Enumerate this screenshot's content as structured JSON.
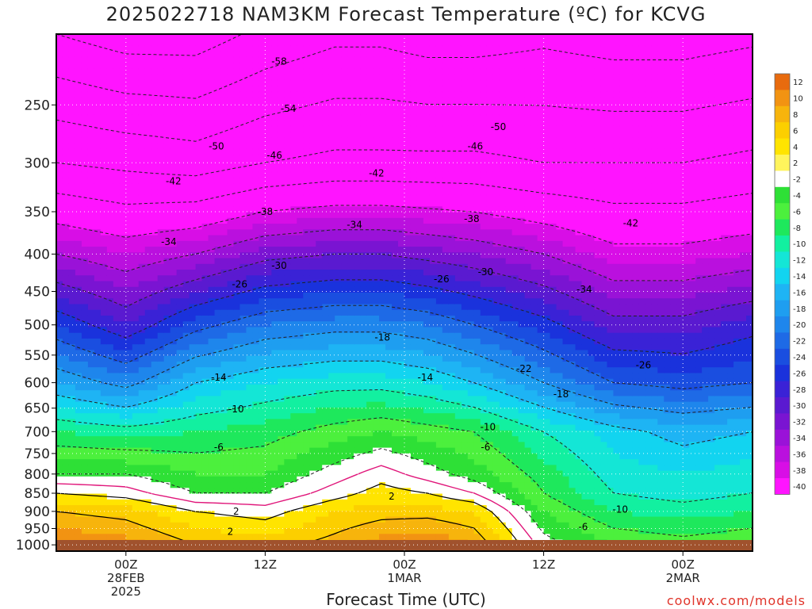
{
  "chart_data": {
    "type": "heatmap",
    "title": "2025022718 NAM3KM Forecast Temperature (ºC) for KCVG",
    "xlabel": "Forecast Time (UTC)",
    "ylabel": "",
    "y_scale": "log-pressure (hPa), inverted",
    "ylim": [
      200,
      1020
    ],
    "y_ticks": [
      250,
      300,
      350,
      400,
      450,
      500,
      550,
      600,
      650,
      700,
      750,
      800,
      850,
      900,
      950,
      1000
    ],
    "x_ticks": [
      {
        "hour": 6,
        "label": [
          "00Z",
          "28FEB",
          "2025"
        ]
      },
      {
        "hour": 18,
        "label": [
          "12Z"
        ]
      },
      {
        "hour": 30,
        "label": [
          "00Z",
          "1MAR"
        ]
      },
      {
        "hour": 42,
        "label": [
          "12Z"
        ]
      },
      {
        "hour": 54,
        "label": [
          "00Z",
          "2MAR"
        ]
      }
    ],
    "xlim_hours_from_init": [
      0,
      60
    ],
    "grid": true,
    "colorbar": {
      "labels": [
        "12",
        "10",
        "8",
        "6",
        "4",
        "2",
        "-2",
        "-4",
        "-6",
        "-8",
        "-10",
        "-12",
        "-14",
        "-16",
        "-18",
        "-20",
        "-22",
        "-24",
        "-26",
        "-28",
        "-30",
        "-32",
        "-34",
        "-36",
        "-38",
        "-40"
      ],
      "colors": [
        "#e86b0e",
        "#f29312",
        "#f7b40c",
        "#fccf00",
        "#ffe400",
        "#fff45c",
        "#ffffff",
        "#2ee036",
        "#4cf03d",
        "#1ee85c",
        "#12f0a0",
        "#14e6d6",
        "#12d4f0",
        "#1eb4f4",
        "#1e9ef0",
        "#1e86ec",
        "#1e6ae6",
        "#1a4ee0",
        "#1a32dc",
        "#3a22d6",
        "#5a1ad0",
        "#7a14d2",
        "#9a12d8",
        "#ba10de",
        "#d80ee6",
        "#ff14ff"
      ],
      "placement": "right"
    },
    "profiles": [
      {
        "hour": 0,
        "t": [
          [
            200,
            -58
          ],
          [
            300,
            -46
          ],
          [
            400,
            -34
          ],
          [
            500,
            -24
          ],
          [
            600,
            -16
          ],
          [
            700,
            -8
          ],
          [
            800,
            -2
          ],
          [
            850,
            2
          ],
          [
            900,
            6
          ],
          [
            1000,
            10
          ]
        ]
      },
      {
        "hour": 6,
        "t": [
          [
            200,
            -60
          ],
          [
            300,
            -47
          ],
          [
            400,
            -36
          ],
          [
            500,
            -28
          ],
          [
            600,
            -19
          ],
          [
            700,
            -9
          ],
          [
            800,
            -2
          ],
          [
            850,
            1
          ],
          [
            900,
            5
          ],
          [
            1000,
            9
          ]
        ]
      },
      {
        "hour": 12,
        "t": [
          [
            200,
            -60
          ],
          [
            300,
            -48
          ],
          [
            400,
            -34
          ],
          [
            500,
            -23
          ],
          [
            600,
            -14
          ],
          [
            700,
            -8
          ],
          [
            800,
            -4
          ],
          [
            850,
            -2
          ],
          [
            900,
            2
          ],
          [
            1000,
            6
          ]
        ]
      },
      {
        "hour": 18,
        "t": [
          [
            200,
            -57
          ],
          [
            300,
            -46
          ],
          [
            400,
            -31
          ],
          [
            500,
            -20
          ],
          [
            600,
            -12
          ],
          [
            700,
            -7
          ],
          [
            800,
            -4
          ],
          [
            850,
            -2
          ],
          [
            900,
            1
          ],
          [
            1000,
            5
          ]
        ]
      },
      {
        "hour": 24,
        "t": [
          [
            200,
            -55
          ],
          [
            300,
            -45
          ],
          [
            400,
            -30
          ],
          [
            500,
            -19
          ],
          [
            600,
            -11
          ],
          [
            700,
            -5
          ],
          [
            800,
            -1
          ],
          [
            850,
            1
          ],
          [
            900,
            4
          ],
          [
            1000,
            7
          ]
        ]
      },
      {
        "hour": 28,
        "t": [
          [
            200,
            -55
          ],
          [
            300,
            -45
          ],
          [
            400,
            -30
          ],
          [
            500,
            -19
          ],
          [
            600,
            -11
          ],
          [
            700,
            -4
          ],
          [
            800,
            1
          ],
          [
            850,
            3
          ],
          [
            900,
            5
          ],
          [
            1000,
            9
          ]
        ]
      },
      {
        "hour": 32,
        "t": [
          [
            200,
            -56
          ],
          [
            300,
            -45
          ],
          [
            400,
            -31
          ],
          [
            500,
            -20
          ],
          [
            600,
            -12
          ],
          [
            700,
            -5
          ],
          [
            800,
            -1
          ],
          [
            850,
            2
          ],
          [
            900,
            5
          ],
          [
            1000,
            10
          ]
        ]
      },
      {
        "hour": 36,
        "t": [
          [
            200,
            -56
          ],
          [
            300,
            -45
          ],
          [
            400,
            -32
          ],
          [
            500,
            -22
          ],
          [
            600,
            -14
          ],
          [
            700,
            -6
          ],
          [
            800,
            -3
          ],
          [
            850,
            0
          ],
          [
            900,
            4
          ],
          [
            1000,
            8
          ]
        ]
      },
      {
        "hour": 42,
        "t": [
          [
            200,
            -55
          ],
          [
            300,
            -46
          ],
          [
            400,
            -34
          ],
          [
            500,
            -25
          ],
          [
            600,
            -18
          ],
          [
            700,
            -10
          ],
          [
            800,
            -7
          ],
          [
            850,
            -6
          ],
          [
            900,
            -4
          ],
          [
            1000,
            -1
          ]
        ]
      },
      {
        "hour": 48,
        "t": [
          [
            200,
            -56
          ],
          [
            300,
            -46
          ],
          [
            400,
            -37
          ],
          [
            500,
            -29
          ],
          [
            600,
            -22
          ],
          [
            700,
            -13
          ],
          [
            800,
            -11
          ],
          [
            850,
            -10
          ],
          [
            900,
            -8
          ],
          [
            1000,
            -4
          ]
        ]
      },
      {
        "hour": 54,
        "t": [
          [
            200,
            -56
          ],
          [
            300,
            -46
          ],
          [
            400,
            -37
          ],
          [
            500,
            -29
          ],
          [
            600,
            -23
          ],
          [
            700,
            -15
          ],
          [
            800,
            -12
          ],
          [
            850,
            -11
          ],
          [
            900,
            -9
          ],
          [
            1000,
            -5
          ]
        ]
      },
      {
        "hour": 60,
        "t": [
          [
            200,
            -55
          ],
          [
            300,
            -45
          ],
          [
            400,
            -36
          ],
          [
            500,
            -27
          ],
          [
            600,
            -22
          ],
          [
            700,
            -14
          ],
          [
            800,
            -11
          ],
          [
            850,
            -10
          ],
          [
            900,
            -8
          ],
          [
            1000,
            -4
          ]
        ]
      }
    ],
    "contour_labels": [
      {
        "text": "-58",
        "hour": 19.2,
        "p": 218
      },
      {
        "text": "-54",
        "hour": 20.0,
        "p": 253
      },
      {
        "text": "-50",
        "hour": 13.8,
        "p": 285
      },
      {
        "text": "-50",
        "hour": 38.1,
        "p": 268
      },
      {
        "text": "-46",
        "hour": 18.8,
        "p": 293
      },
      {
        "text": "-46",
        "hour": 36.1,
        "p": 285
      },
      {
        "text": "-42",
        "hour": 10.1,
        "p": 318
      },
      {
        "text": "-42",
        "hour": 27.6,
        "p": 310
      },
      {
        "text": "-42",
        "hour": 49.5,
        "p": 363
      },
      {
        "text": "-38",
        "hour": 18.0,
        "p": 350
      },
      {
        "text": "-38",
        "hour": 35.8,
        "p": 358
      },
      {
        "text": "-34",
        "hour": 9.7,
        "p": 385
      },
      {
        "text": "-34",
        "hour": 25.7,
        "p": 365
      },
      {
        "text": "-34",
        "hour": 45.5,
        "p": 447
      },
      {
        "text": "-30",
        "hour": 19.2,
        "p": 415
      },
      {
        "text": "-30",
        "hour": 37.0,
        "p": 423
      },
      {
        "text": "-26",
        "hour": 15.8,
        "p": 440
      },
      {
        "text": "-26",
        "hour": 33.2,
        "p": 433
      },
      {
        "text": "-26",
        "hour": 50.6,
        "p": 568
      },
      {
        "text": "-22",
        "hour": 40.3,
        "p": 574
      },
      {
        "text": "-18",
        "hour": 28.1,
        "p": 520
      },
      {
        "text": "-18",
        "hour": 43.5,
        "p": 622
      },
      {
        "text": "-14",
        "hour": 14.0,
        "p": 590
      },
      {
        "text": "-14",
        "hour": 31.8,
        "p": 590
      },
      {
        "text": "-10",
        "hour": 15.5,
        "p": 652
      },
      {
        "text": "-10",
        "hour": 37.2,
        "p": 690
      },
      {
        "text": "-10",
        "hour": 48.6,
        "p": 895
      },
      {
        "text": "-6",
        "hour": 14.0,
        "p": 735
      },
      {
        "text": "-6",
        "hour": 37.0,
        "p": 735
      },
      {
        "text": "-6",
        "hour": 45.4,
        "p": 945
      },
      {
        "text": "2",
        "hour": 15.5,
        "p": 900
      },
      {
        "text": "2",
        "hour": 15.0,
        "p": 960
      },
      {
        "text": "2",
        "hour": 28.9,
        "p": 858
      }
    ],
    "ground_color": "#a0522d"
  },
  "credit": "coolwx.com/models"
}
